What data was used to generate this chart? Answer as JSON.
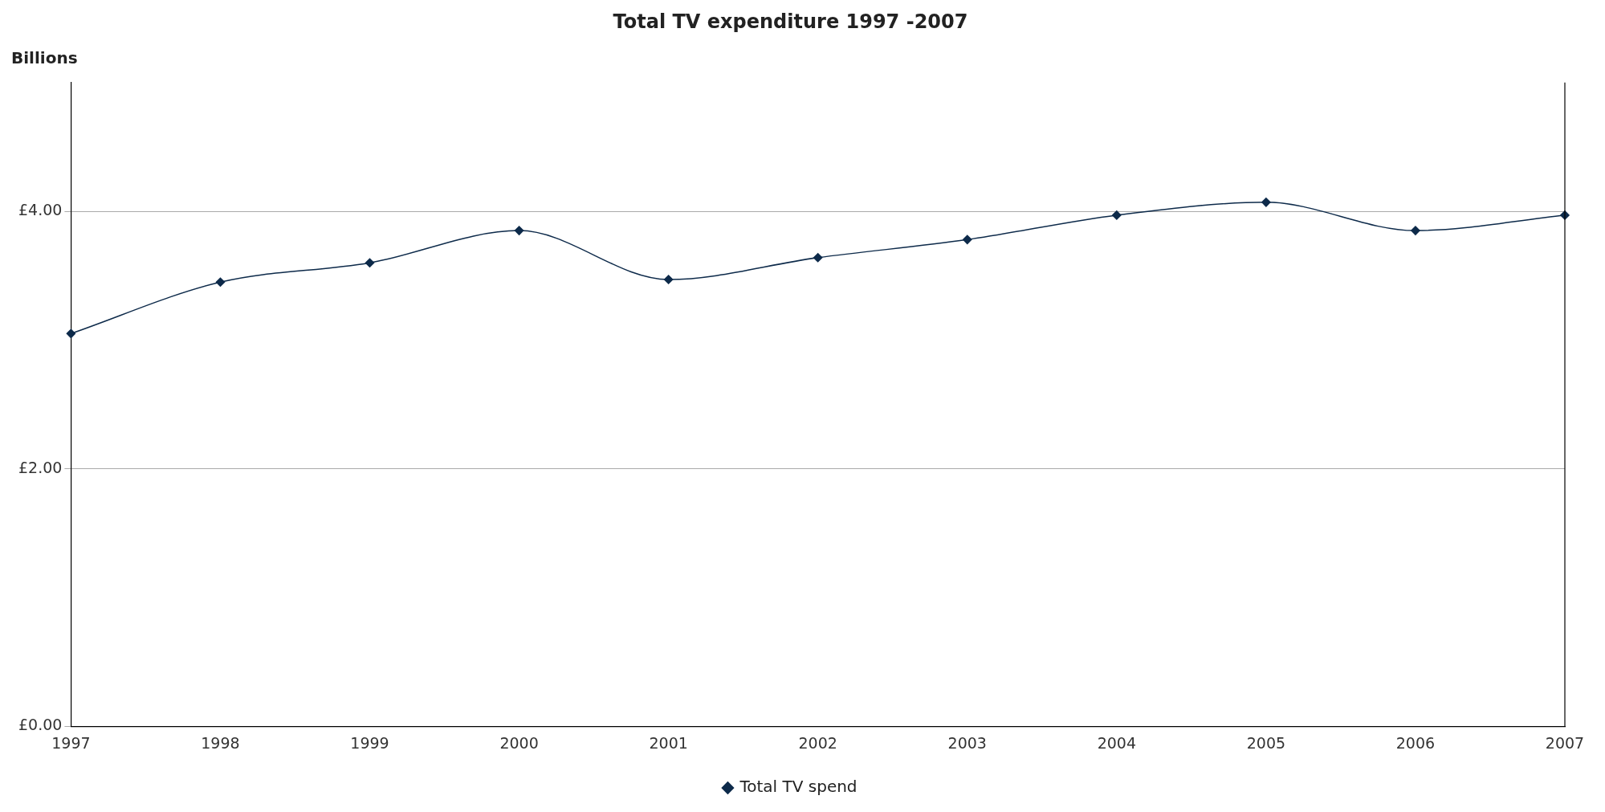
{
  "chart_data": {
    "type": "line",
    "title": "Total TV expenditure 1997 -2007",
    "ylabel": "Billions",
    "categories": [
      "1997",
      "1998",
      "1999",
      "2000",
      "2001",
      "2002",
      "2003",
      "2004",
      "2005",
      "2006",
      "2007"
    ],
    "series": [
      {
        "name": "Total TV spend",
        "color": "#0d2a4a",
        "values": [
          3.05,
          3.45,
          3.6,
          3.85,
          3.47,
          3.64,
          3.78,
          3.97,
          4.07,
          3.85,
          3.97
        ]
      }
    ],
    "ylim": [
      0,
      5
    ],
    "yticks": [
      {
        "value": 0,
        "label": "£0.00"
      },
      {
        "value": 2,
        "label": "£2.00"
      },
      {
        "value": 4,
        "label": "£4.00"
      }
    ],
    "grid": "y",
    "legend": "bottom",
    "marker": "diamond",
    "line_style": "solid"
  }
}
